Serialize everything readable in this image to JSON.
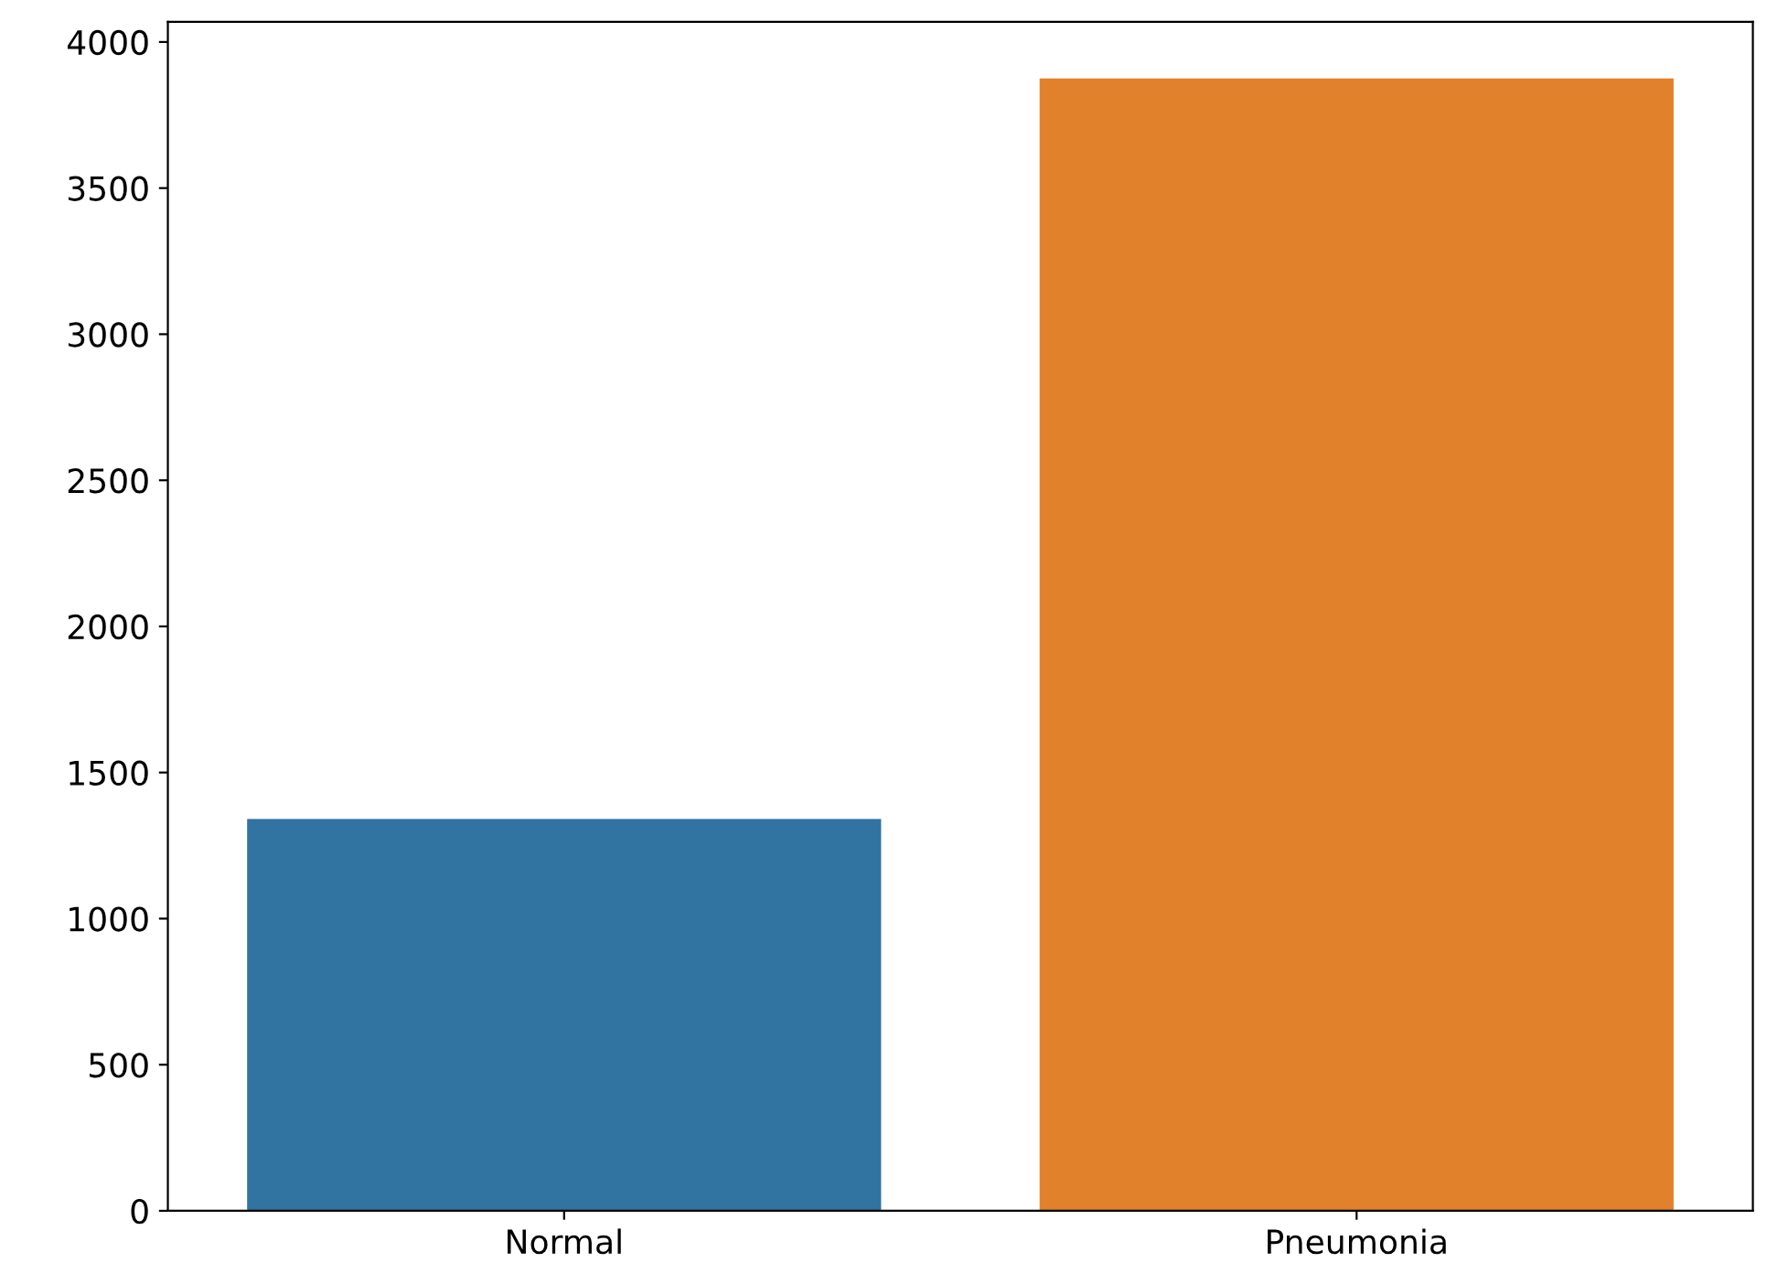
{
  "chart_data": {
    "type": "bar",
    "categories": [
      "Normal",
      "Pneumonia"
    ],
    "values": [
      1341,
      3875
    ],
    "colors": [
      "#3274a1",
      "#e1812c"
    ],
    "ylim": [
      0,
      4069
    ],
    "yticks": [
      0,
      500,
      1000,
      1500,
      2000,
      2500,
      3000,
      3500,
      4000
    ],
    "grid": false
  }
}
